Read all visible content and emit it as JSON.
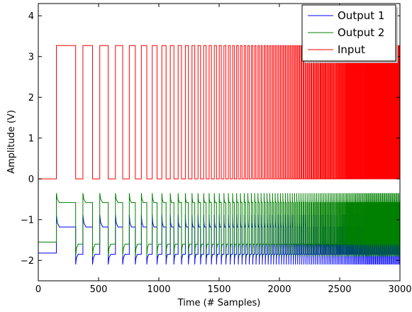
{
  "chart_data": {
    "type": "line",
    "xlabel": "Time (# Samples)",
    "ylabel": "Amplitude (V)",
    "xlim": [
      0,
      3000
    ],
    "ylim": [
      -2.5,
      4.3
    ],
    "x_ticks": [
      0,
      500,
      1000,
      1500,
      2000,
      2500,
      3000
    ],
    "x_tick_labels": [
      "0",
      "500",
      "1000",
      "1500",
      "2000",
      "2500",
      "3000"
    ],
    "y_ticks": [
      -2,
      -1,
      0,
      1,
      2,
      3,
      4
    ],
    "y_tick_labels": [
      "−2",
      "−1",
      "0",
      "1",
      "2",
      "3",
      "4"
    ],
    "grid": false,
    "legend_position": "top-right",
    "series": [
      {
        "name": "Output 1",
        "color": "#0000ff",
        "baseline_before_first_pulse": -1.82,
        "plateau_after_rise": -1.18,
        "spike_high": -0.88,
        "low_level": -1.85,
        "spike_low": -2.1
      },
      {
        "name": "Output 2",
        "color": "#008000",
        "baseline_before_first_pulse": -1.55,
        "plateau_after_rise": -0.58,
        "spike_high": -0.35,
        "low_level": -1.6,
        "spike_low": -1.9
      },
      {
        "name": "Input",
        "color": "#ff0000",
        "low": 0.0,
        "high": 3.27,
        "pulse_edges": [
          [
            150,
            310
          ],
          [
            370,
            450
          ],
          [
            510,
            580
          ],
          [
            640,
            700
          ],
          [
            755,
            805
          ],
          [
            855,
            900
          ],
          [
            945,
            985
          ],
          [
            1025,
            1060
          ],
          [
            1095,
            1125
          ],
          [
            1160,
            1188
          ],
          [
            1220,
            1245
          ],
          [
            1275,
            1298
          ],
          [
            1325,
            1346
          ],
          [
            1372,
            1392
          ],
          [
            1417,
            1436
          ],
          [
            1460,
            1478
          ],
          [
            1501,
            1518
          ],
          [
            1540,
            1556
          ],
          [
            1577,
            1592
          ],
          [
            1612,
            1626
          ],
          [
            1645,
            1659
          ],
          [
            1677,
            1690
          ],
          [
            1708,
            1721
          ],
          [
            1738,
            1750
          ],
          [
            1767,
            1779
          ],
          [
            1795,
            1806
          ],
          [
            1822,
            1833
          ],
          [
            1848,
            1858
          ],
          [
            1873,
            1883
          ],
          [
            1897,
            1907
          ],
          [
            1920,
            1930
          ],
          [
            1943,
            1952
          ],
          [
            1965,
            1974
          ],
          [
            1987,
            1996
          ],
          [
            2008,
            2017
          ],
          [
            2029,
            2037
          ],
          [
            2049,
            2057
          ],
          [
            2069,
            2077
          ],
          [
            2088,
            2096
          ],
          [
            2107,
            2115
          ],
          [
            2126,
            2133
          ],
          [
            2144,
            2151
          ],
          [
            2162,
            2169
          ],
          [
            2179,
            2186
          ],
          [
            2196,
            2203
          ],
          [
            2213,
            2220
          ],
          [
            2230,
            2236
          ],
          [
            2246,
            2252
          ],
          [
            2262,
            2268
          ],
          [
            2278,
            2284
          ],
          [
            2293,
            2299
          ],
          [
            2308,
            2314
          ],
          [
            2323,
            2329
          ],
          [
            2338,
            2344
          ],
          [
            2352,
            2358
          ],
          [
            2366,
            2372
          ],
          [
            2380,
            2386
          ],
          [
            2394,
            2400
          ],
          [
            2408,
            2413
          ],
          [
            2421,
            2426
          ],
          [
            2434,
            2439
          ],
          [
            2447,
            2452
          ],
          [
            2460,
            2465
          ],
          [
            2473,
            2478
          ],
          [
            2485,
            2490
          ],
          [
            2497,
            2502
          ],
          [
            2509,
            2514
          ],
          [
            2521,
            2526
          ],
          [
            2533,
            2538
          ],
          [
            2545,
            2550
          ],
          [
            2556,
            2561
          ],
          [
            2567,
            2572
          ],
          [
            2578,
            2583
          ],
          [
            2589,
            2594
          ],
          [
            2600,
            2605
          ],
          [
            2611,
            2616
          ],
          [
            2622,
            2626
          ],
          [
            2632,
            2636
          ],
          [
            2642,
            2646
          ],
          [
            2652,
            2656
          ],
          [
            2662,
            2666
          ],
          [
            2672,
            2676
          ],
          [
            2682,
            2686
          ],
          [
            2692,
            2696
          ],
          [
            2702,
            2706
          ],
          [
            2712,
            2716
          ],
          [
            2721,
            2725
          ],
          [
            2730,
            2734
          ],
          [
            2739,
            2743
          ],
          [
            2748,
            2752
          ],
          [
            2757,
            2761
          ],
          [
            2766,
            2770
          ],
          [
            2775,
            2779
          ],
          [
            2784,
            2788
          ],
          [
            2793,
            2797
          ],
          [
            2802,
            2806
          ],
          [
            2811,
            2815
          ],
          [
            2820,
            2824
          ],
          [
            2829,
            2833
          ],
          [
            2838,
            2842
          ],
          [
            2847,
            2851
          ],
          [
            2856,
            2860
          ],
          [
            2865,
            2869
          ],
          [
            2874,
            2878
          ],
          [
            2883,
            2887
          ],
          [
            2892,
            2896
          ],
          [
            2901,
            2905
          ],
          [
            2910,
            2914
          ],
          [
            2919,
            2923
          ],
          [
            2928,
            2932
          ],
          [
            2937,
            2941
          ],
          [
            2946,
            2950
          ],
          [
            2955,
            2959
          ],
          [
            2964,
            2968
          ],
          [
            2973,
            2977
          ],
          [
            2982,
            2986
          ],
          [
            2991,
            2995
          ]
        ]
      }
    ]
  }
}
